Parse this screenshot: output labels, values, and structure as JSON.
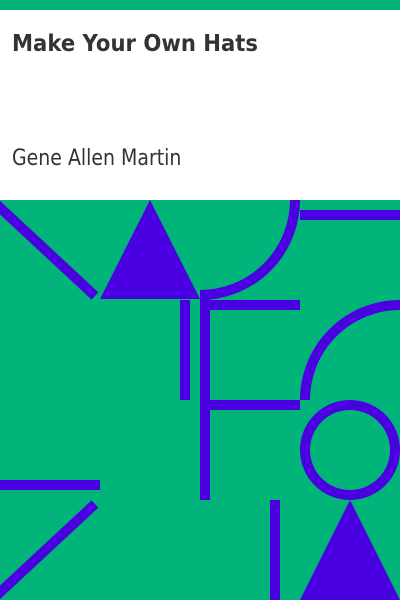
{
  "cover": {
    "title": "Make Your Own Hats",
    "author": "Gene Allen Martin",
    "colors": {
      "accent_green": "#00b47a",
      "shape_purple": "#4a00e0",
      "title_background": "#ffffff",
      "text": "#333333"
    },
    "artwork": {
      "shapes": [
        "diagonal-line",
        "triangle",
        "arc",
        "horizontal-line",
        "vertical-line",
        "arc",
        "circle",
        "triangle",
        "horizontal-line",
        "diagonal-line",
        "vertical-line"
      ]
    }
  }
}
